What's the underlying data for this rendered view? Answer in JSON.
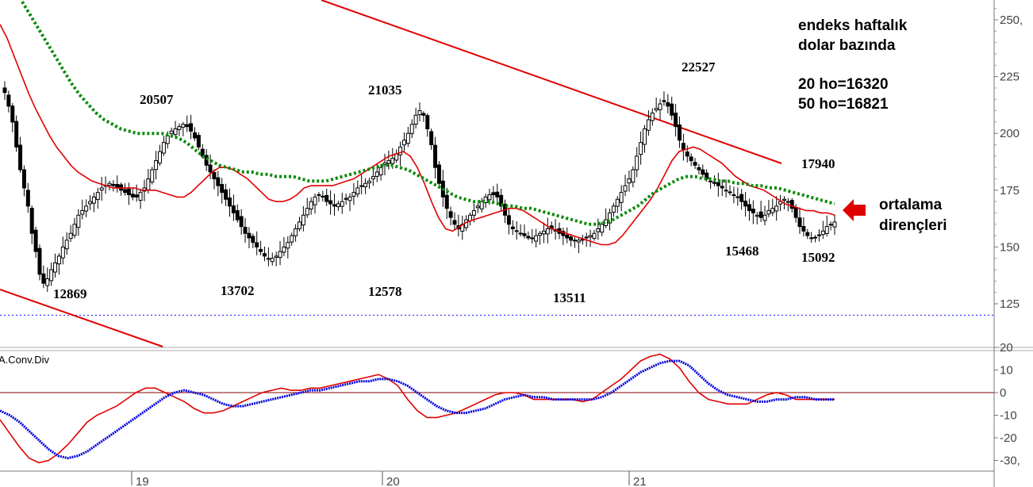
{
  "chart_data": [
    {
      "type": "candlestick",
      "ylim": [
        112,
        258
      ],
      "y_ticks": [
        "125",
        "150",
        "175",
        "200",
        "225",
        "250,"
      ],
      "x_ticks": [
        "19",
        "20",
        "21"
      ],
      "reference_line_value": 120,
      "annotations": {
        "peak_1": "20507",
        "peak_2": "21035",
        "peak_3": "22527",
        "peak_4": "17940",
        "low_1": "12869",
        "low_2": "13702",
        "low_3": "12578",
        "low_4": "13511",
        "low_5": "15468",
        "low_6": "15092"
      },
      "info_box": {
        "line1": "endeks haftalık",
        "line2": "dolar bazında",
        "line3": "20 ho=16320",
        "line4": "50 ho=16821"
      },
      "arrow_label": {
        "line1": "ortalama",
        "line2": "dirençleri"
      },
      "close_series": [
        218,
        212,
        205,
        194,
        184,
        176,
        168,
        156,
        148,
        138,
        134,
        136,
        140,
        143,
        146,
        150,
        153,
        156,
        160,
        164,
        166,
        168,
        170,
        172,
        174,
        176,
        177,
        178,
        177,
        176,
        175,
        174,
        173,
        172,
        172,
        174,
        176,
        180,
        184,
        188,
        192,
        196,
        199,
        201,
        202,
        203,
        204,
        203,
        201,
        198,
        194,
        190,
        186,
        183,
        180,
        177,
        174,
        171,
        168,
        165,
        162,
        159,
        156,
        154,
        152,
        150,
        148,
        146,
        145,
        145,
        146,
        148,
        150,
        152,
        155,
        158,
        161,
        164,
        167,
        170,
        172,
        173,
        172,
        170,
        169,
        168,
        169,
        170,
        171,
        172,
        174,
        176,
        177,
        178,
        179,
        181,
        183,
        185,
        187,
        188,
        189,
        191,
        194,
        197,
        200,
        204,
        208,
        210,
        208,
        202,
        195,
        185,
        178,
        172,
        167,
        163,
        160,
        158,
        160,
        162,
        164,
        166,
        168,
        170,
        172,
        173,
        173,
        172,
        168,
        164,
        160,
        158,
        157,
        156,
        155,
        154,
        154,
        155,
        156,
        157,
        158,
        158,
        157,
        156,
        155,
        154,
        153,
        153,
        153,
        153,
        154,
        155,
        156,
        158,
        160,
        162,
        165,
        168,
        171,
        174,
        177,
        180,
        184,
        190,
        196,
        202,
        206,
        209,
        211,
        213,
        214,
        212,
        208,
        203,
        197,
        193,
        190,
        188,
        186,
        184,
        182,
        180,
        179,
        178,
        177,
        176,
        175,
        174,
        173,
        172,
        170,
        168,
        166,
        165,
        164,
        163,
        164,
        166,
        167,
        168,
        170,
        171,
        170,
        167,
        163,
        159,
        157,
        155,
        154,
        154,
        155,
        157,
        159,
        160,
        161
      ],
      "ma20_series": [
        248,
        242,
        234,
        226,
        218,
        211,
        205,
        199,
        194,
        190,
        186,
        183,
        181,
        179,
        178,
        177,
        176,
        176,
        176,
        176,
        175,
        175,
        175,
        174,
        173,
        172,
        172,
        174,
        177,
        180,
        183,
        185,
        185,
        184,
        182,
        180,
        177,
        174,
        171,
        170,
        170,
        171,
        173,
        176,
        177,
        177,
        177,
        177,
        178,
        179,
        180,
        182,
        184,
        186,
        188,
        190,
        191,
        192,
        190,
        185,
        178,
        170,
        163,
        158,
        157,
        159,
        161,
        162,
        163,
        164,
        165,
        166,
        167,
        167,
        166,
        164,
        162,
        160,
        158,
        157,
        156,
        155,
        154,
        153,
        152,
        151,
        151,
        152,
        155,
        159,
        163,
        167,
        171,
        176,
        182,
        188,
        192,
        193,
        194,
        193,
        191,
        189,
        187,
        184,
        181,
        179,
        177,
        176,
        175,
        173,
        171,
        169,
        168,
        167,
        166,
        166,
        165,
        165,
        164
      ],
      "ma50_series": [
        258,
        252,
        246,
        240,
        234,
        228,
        222,
        217,
        213,
        209,
        206,
        204,
        202,
        201,
        200,
        200,
        200,
        200,
        199,
        198,
        196,
        193,
        190,
        188,
        186,
        185,
        184,
        183,
        183,
        182,
        182,
        181,
        181,
        181,
        180,
        179,
        179,
        179,
        180,
        181,
        182,
        183,
        184,
        185,
        186,
        186,
        185,
        184,
        182,
        180,
        178,
        176,
        174,
        172,
        171,
        170,
        170,
        170,
        169,
        168,
        168,
        167,
        167,
        166,
        165,
        164,
        163,
        162,
        161,
        160,
        160,
        161,
        162,
        164,
        166,
        168,
        171,
        174,
        176,
        178,
        180,
        181,
        181,
        180,
        180,
        179,
        179,
        178,
        178,
        177,
        177,
        176,
        176,
        175,
        174,
        173,
        172,
        171,
        170,
        169
      ],
      "resistance_line": {
        "start": [
          -10,
          268
        ],
        "end": [
          1,
          186
        ]
      },
      "lower_trend_line": {
        "start": [
          -1,
          154
        ],
        "end": [
          0,
          115
        ]
      }
    },
    {
      "type": "line",
      "title": "A.Conv.Div",
      "ylim": [
        -32,
        22
      ],
      "y_ticks": [
        "20",
        "10",
        "0",
        "-10",
        "-20",
        "-30,"
      ],
      "zero_line": 0,
      "series": [
        {
          "color": "#e00000",
          "values": [
            -12,
            -18,
            -24,
            -29,
            -31,
            -30,
            -27,
            -23,
            -18,
            -13,
            -10,
            -8,
            -6,
            -3,
            0,
            2,
            2,
            0,
            -2,
            -4,
            -7,
            -9,
            -9,
            -8,
            -6,
            -4,
            -2,
            0,
            1,
            2,
            1,
            1,
            2,
            2,
            3,
            4,
            5,
            6,
            7,
            8,
            6,
            3,
            -3,
            -8,
            -11,
            -11,
            -10,
            -9,
            -7,
            -5,
            -3,
            -1,
            0,
            0,
            -1,
            -3,
            -3,
            -3,
            -3,
            -3,
            -4,
            -3,
            0,
            3,
            6,
            10,
            14,
            16,
            17,
            15,
            11,
            5,
            0,
            -3,
            -4,
            -5,
            -5,
            -5,
            -3,
            -1,
            0,
            -1,
            -3,
            -3,
            -3,
            -3,
            -3
          ]
        },
        {
          "color": "#0000dd",
          "values": [
            -8,
            -10,
            -13,
            -17,
            -21,
            -25,
            -28,
            -29,
            -28,
            -26,
            -23,
            -20,
            -17,
            -14,
            -11,
            -8,
            -5,
            -2,
            0,
            1,
            0,
            -1,
            -3,
            -5,
            -6,
            -6,
            -5,
            -4,
            -3,
            -2,
            -1,
            0,
            1,
            1,
            2,
            3,
            4,
            5,
            5,
            6,
            6,
            5,
            3,
            0,
            -3,
            -6,
            -8,
            -9,
            -9,
            -8,
            -7,
            -5,
            -3,
            -2,
            -1,
            -2,
            -2,
            -3,
            -3,
            -3,
            -3,
            -3,
            -2,
            0,
            3,
            6,
            9,
            11,
            13,
            14,
            14,
            12,
            8,
            4,
            1,
            -1,
            -2,
            -3,
            -4,
            -4,
            -3,
            -3,
            -2,
            -2,
            -3,
            -3,
            -3
          ]
        }
      ]
    }
  ]
}
